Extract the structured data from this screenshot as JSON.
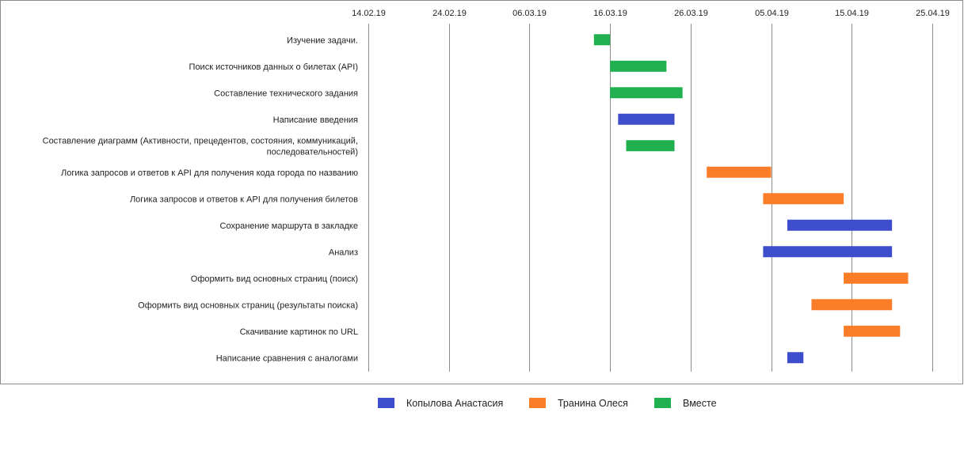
{
  "chart_data": {
    "type": "gantt",
    "x_ticks": [
      "14.02.19",
      "24.02.19",
      "06.03.19",
      "16.03.19",
      "26.03.19",
      "05.04.19",
      "15.04.19",
      "25.04.19"
    ],
    "x_range": [
      "2019-02-14",
      "2019-04-25"
    ],
    "grid": true,
    "legend_position": "bottom",
    "series": [
      {
        "name": "Копылова Анастасия",
        "color": "#3d4dcc"
      },
      {
        "name": "Транина Олеся",
        "color": "#fb7d28"
      },
      {
        "name": "Вместе",
        "color": "#21b04f"
      }
    ],
    "tasks": [
      {
        "label": [
          "Изучение  задачи."
        ],
        "start": "2019-03-14",
        "end": "2019-03-16",
        "series": 2
      },
      {
        "label": [
          "Поиск источников  данных о билетах (API)"
        ],
        "start": "2019-03-16",
        "end": "2019-03-23",
        "series": 2
      },
      {
        "label": [
          "Составление технического задания"
        ],
        "start": "2019-03-16",
        "end": "2019-03-25",
        "series": 2
      },
      {
        "label": [
          "Написание введения"
        ],
        "start": "2019-03-17",
        "end": "2019-03-24",
        "series": 0
      },
      {
        "label": [
          "Составление диаграмм (Активности, прецедентов,  состояния, коммуникаций,",
          "последовательностей)"
        ],
        "start": "2019-03-18",
        "end": "2019-03-24",
        "series": 2
      },
      {
        "label": [
          "Логика запросов и ответов  к API для получения  кода города по названию"
        ],
        "start": "2019-03-28",
        "end": "2019-04-05",
        "series": 1
      },
      {
        "label": [
          "Логика запросов и ответов  к API для получения  билетов"
        ],
        "start": "2019-04-04",
        "end": "2019-04-14",
        "series": 1
      },
      {
        "label": [
          "Сохранение маршрута в закладке"
        ],
        "start": "2019-04-07",
        "end": "2019-04-20",
        "series": 0
      },
      {
        "label": [
          "Анализ"
        ],
        "start": "2019-04-04",
        "end": "2019-04-20",
        "series": 0
      },
      {
        "label": [
          "Оформить вид основных страниц (поиск)"
        ],
        "start": "2019-04-14",
        "end": "2019-04-22",
        "series": 1
      },
      {
        "label": [
          "Оформить вид основных страниц (результаты поиска)"
        ],
        "start": "2019-04-10",
        "end": "2019-04-20",
        "series": 1
      },
      {
        "label": [
          "Скачивание картинок по URL"
        ],
        "start": "2019-04-14",
        "end": "2019-04-21",
        "series": 1
      },
      {
        "label": [
          "Написание сравнения с аналогами"
        ],
        "start": "2019-04-07",
        "end": "2019-04-09",
        "series": 0
      }
    ]
  }
}
